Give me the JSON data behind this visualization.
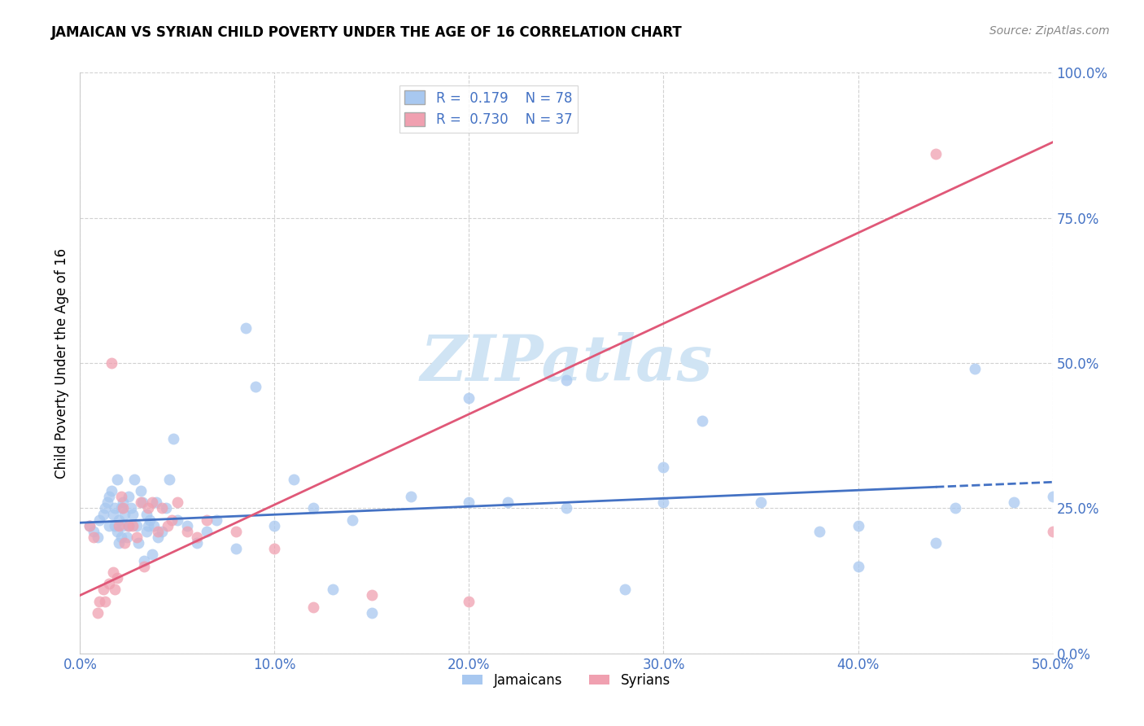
{
  "title": "JAMAICAN VS SYRIAN CHILD POVERTY UNDER THE AGE OF 16 CORRELATION CHART",
  "source": "Source: ZipAtlas.com",
  "ylabel": "Child Poverty Under the Age of 16",
  "xlabel_ticks": [
    "0.0%",
    "10.0%",
    "20.0%",
    "30.0%",
    "40.0%",
    "50.0%"
  ],
  "xlabel_vals": [
    0.0,
    0.1,
    0.2,
    0.3,
    0.4,
    0.5
  ],
  "ylabel_ticks": [
    "100.0%",
    "75.0%",
    "50.0%",
    "25.0%",
    "0.0%"
  ],
  "ylabel_vals": [
    1.0,
    0.75,
    0.5,
    0.25,
    0.0
  ],
  "xlim": [
    0.0,
    0.5
  ],
  "ylim": [
    0.0,
    1.0
  ],
  "jamaican_R": 0.179,
  "jamaican_N": 78,
  "syrian_R": 0.73,
  "syrian_N": 37,
  "jamaican_color": "#A8C8F0",
  "syrian_color": "#F0A0B0",
  "jamaican_line_color": "#4472C4",
  "syrian_line_color": "#E05878",
  "watermark_color": "#D0E4F4",
  "background_color": "#FFFFFF",
  "jamaican_line_x0": 0.0,
  "jamaican_line_y0": 0.225,
  "jamaican_line_x1": 0.5,
  "jamaican_line_y1": 0.295,
  "syrian_line_x0": 0.0,
  "syrian_line_y0": 0.1,
  "syrian_line_x1": 0.5,
  "syrian_line_y1": 0.88,
  "jamaican_x": [
    0.005,
    0.007,
    0.009,
    0.01,
    0.012,
    0.013,
    0.014,
    0.015,
    0.015,
    0.016,
    0.017,
    0.018,
    0.018,
    0.019,
    0.019,
    0.02,
    0.02,
    0.021,
    0.021,
    0.022,
    0.022,
    0.023,
    0.024,
    0.025,
    0.025,
    0.026,
    0.027,
    0.028,
    0.029,
    0.03,
    0.031,
    0.032,
    0.033,
    0.034,
    0.034,
    0.035,
    0.036,
    0.037,
    0.038,
    0.039,
    0.04,
    0.042,
    0.044,
    0.046,
    0.048,
    0.05,
    0.055,
    0.06,
    0.065,
    0.07,
    0.08,
    0.085,
    0.09,
    0.1,
    0.11,
    0.12,
    0.13,
    0.14,
    0.15,
    0.17,
    0.2,
    0.22,
    0.25,
    0.28,
    0.3,
    0.32,
    0.38,
    0.4,
    0.44,
    0.46,
    0.48,
    0.5,
    0.2,
    0.25,
    0.3,
    0.35,
    0.4,
    0.45
  ],
  "jamaican_y": [
    0.22,
    0.21,
    0.2,
    0.23,
    0.24,
    0.25,
    0.26,
    0.22,
    0.27,
    0.28,
    0.24,
    0.22,
    0.25,
    0.21,
    0.3,
    0.19,
    0.23,
    0.25,
    0.2,
    0.26,
    0.22,
    0.24,
    0.2,
    0.22,
    0.27,
    0.25,
    0.24,
    0.3,
    0.22,
    0.19,
    0.28,
    0.26,
    0.16,
    0.21,
    0.24,
    0.22,
    0.23,
    0.17,
    0.22,
    0.26,
    0.2,
    0.21,
    0.25,
    0.3,
    0.37,
    0.23,
    0.22,
    0.19,
    0.21,
    0.23,
    0.18,
    0.56,
    0.46,
    0.22,
    0.3,
    0.25,
    0.11,
    0.23,
    0.07,
    0.27,
    0.44,
    0.26,
    0.47,
    0.11,
    0.26,
    0.4,
    0.21,
    0.22,
    0.19,
    0.49,
    0.26,
    0.27,
    0.26,
    0.25,
    0.32,
    0.26,
    0.15,
    0.25
  ],
  "syrian_x": [
    0.005,
    0.007,
    0.009,
    0.01,
    0.012,
    0.013,
    0.015,
    0.016,
    0.017,
    0.018,
    0.019,
    0.02,
    0.021,
    0.022,
    0.023,
    0.025,
    0.027,
    0.029,
    0.031,
    0.033,
    0.035,
    0.037,
    0.04,
    0.042,
    0.045,
    0.047,
    0.05,
    0.055,
    0.06,
    0.065,
    0.08,
    0.1,
    0.12,
    0.15,
    0.2,
    0.44,
    0.5
  ],
  "syrian_y": [
    0.22,
    0.2,
    0.07,
    0.09,
    0.11,
    0.09,
    0.12,
    0.5,
    0.14,
    0.11,
    0.13,
    0.22,
    0.27,
    0.25,
    0.19,
    0.22,
    0.22,
    0.2,
    0.26,
    0.15,
    0.25,
    0.26,
    0.21,
    0.25,
    0.22,
    0.23,
    0.26,
    0.21,
    0.2,
    0.23,
    0.21,
    0.18,
    0.08,
    0.1,
    0.09,
    0.86,
    0.21
  ]
}
